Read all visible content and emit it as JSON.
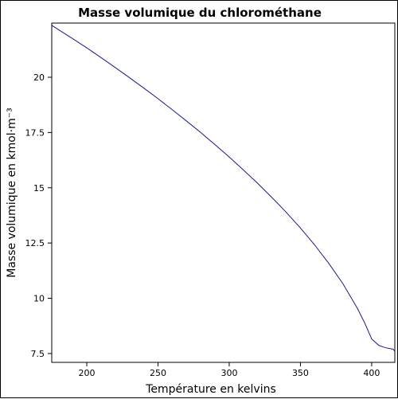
{
  "chart_data": {
    "type": "line",
    "title": "Masse volumique du chlorométhane",
    "xlabel": "Température en kelvins",
    "ylabel": "Masse volumique en kmol·m⁻³",
    "xlim": [
      175.4,
      416.25
    ],
    "ylim": [
      7.1,
      22.45
    ],
    "xticks": [
      200,
      250,
      300,
      350,
      400
    ],
    "yticks": [
      7.5,
      10,
      12.5,
      15,
      17.5,
      20
    ],
    "xtick_labels": [
      "200",
      "250",
      "300",
      "350",
      "400"
    ],
    "ytick_labels": [
      "7.5",
      "10",
      "12.5",
      "15",
      "17.5",
      "20"
    ],
    "grid": false,
    "series": [
      {
        "color": "#1a1a8c",
        "x": [
          175.4,
          180,
          190,
          200,
          210,
          220,
          230,
          240,
          250,
          260,
          270,
          280,
          290,
          300,
          310,
          320,
          330,
          340,
          350,
          360,
          370,
          380,
          390,
          395,
          400,
          405,
          408,
          410,
          412,
          413,
          414,
          415,
          416.25
        ],
        "y": [
          22.35,
          22.16,
          21.75,
          21.33,
          20.89,
          20.44,
          19.98,
          19.51,
          19.03,
          18.53,
          18.02,
          17.5,
          16.95,
          16.39,
          15.8,
          15.2,
          14.56,
          13.89,
          13.18,
          12.41,
          11.57,
          10.64,
          9.54,
          8.9,
          8.16,
          7.87,
          7.8,
          7.76,
          7.73,
          7.72,
          7.71,
          7.7,
          7.6
        ]
      }
    ]
  }
}
